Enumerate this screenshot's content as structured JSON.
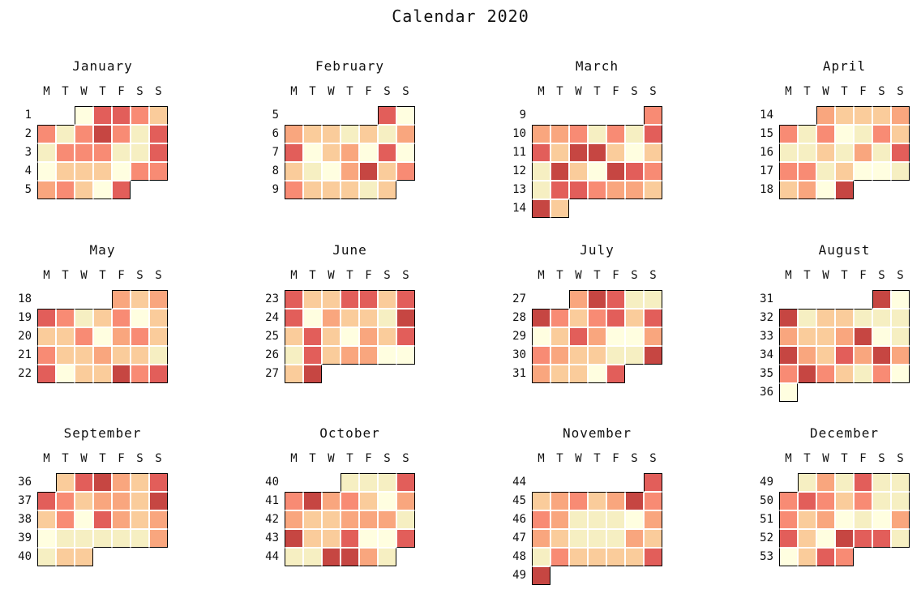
{
  "page": {
    "background": "#ffffff",
    "text_color": "#111111"
  },
  "chart_data": {
    "type": "heatmap",
    "title": "Calendar 2020",
    "year": 2020,
    "layout": {
      "months_per_row": 4,
      "week_numbers_side": "left",
      "legend": "none",
      "colormap_style": "yellow-cream to dark red (YlOrRd-like)"
    },
    "day_headers": [
      "M",
      "T",
      "W",
      "T",
      "F",
      "S",
      "S"
    ],
    "palette": {
      "0": "#FFFEE0",
      "1": "#F6EFC2",
      "2": "#FACC9B",
      "3": "#F9A67E",
      "4": "#F88B74",
      "5": "#E25E5A",
      "6": "#C64642"
    },
    "months": [
      {
        "name": "January",
        "weeks": [
          {
            "week": "1",
            "cells": [
              null,
              null,
              0,
              5,
              5,
              4,
              2
            ]
          },
          {
            "week": "2",
            "cells": [
              4,
              1,
              4,
              6,
              4,
              1,
              5
            ]
          },
          {
            "week": "3",
            "cells": [
              1,
              4,
              4,
              4,
              1,
              1,
              5
            ]
          },
          {
            "week": "4",
            "cells": [
              0,
              2,
              2,
              2,
              0,
              4,
              4
            ]
          },
          {
            "week": "5",
            "cells": [
              3,
              4,
              2,
              0,
              5,
              null,
              null
            ]
          }
        ]
      },
      {
        "name": "February",
        "weeks": [
          {
            "week": "5",
            "cells": [
              null,
              null,
              null,
              null,
              null,
              5,
              0
            ]
          },
          {
            "week": "6",
            "cells": [
              3,
              2,
              2,
              1,
              2,
              1,
              3
            ]
          },
          {
            "week": "7",
            "cells": [
              5,
              0,
              2,
              3,
              0,
              5,
              0
            ]
          },
          {
            "week": "8",
            "cells": [
              2,
              1,
              0,
              3,
              6,
              2,
              4
            ]
          },
          {
            "week": "9",
            "cells": [
              4,
              2,
              2,
              2,
              1,
              2,
              null
            ]
          }
        ]
      },
      {
        "name": "March",
        "weeks": [
          {
            "week": "9",
            "cells": [
              null,
              null,
              null,
              null,
              null,
              null,
              4
            ]
          },
          {
            "week": "10",
            "cells": [
              3,
              3,
              4,
              1,
              4,
              1,
              5
            ]
          },
          {
            "week": "11",
            "cells": [
              5,
              2,
              6,
              6,
              2,
              0,
              2
            ]
          },
          {
            "week": "12",
            "cells": [
              1,
              6,
              2,
              0,
              6,
              5,
              4
            ]
          },
          {
            "week": "13",
            "cells": [
              1,
              5,
              5,
              4,
              3,
              3,
              2
            ]
          },
          {
            "week": "14",
            "cells": [
              6,
              2,
              null,
              null,
              null,
              null,
              null
            ]
          }
        ]
      },
      {
        "name": "April",
        "weeks": [
          {
            "week": "14",
            "cells": [
              null,
              null,
              3,
              2,
              2,
              2,
              3
            ]
          },
          {
            "week": "15",
            "cells": [
              4,
              1,
              4,
              0,
              1,
              4,
              2
            ]
          },
          {
            "week": "16",
            "cells": [
              1,
              1,
              2,
              1,
              3,
              1,
              5
            ]
          },
          {
            "week": "17",
            "cells": [
              4,
              4,
              1,
              2,
              0,
              0,
              1
            ]
          },
          {
            "week": "18",
            "cells": [
              2,
              3,
              0,
              6,
              null,
              null,
              null
            ]
          }
        ]
      },
      {
        "name": "May",
        "weeks": [
          {
            "week": "18",
            "cells": [
              null,
              null,
              null,
              null,
              3,
              2,
              3
            ]
          },
          {
            "week": "19",
            "cells": [
              5,
              4,
              1,
              2,
              4,
              0,
              2
            ]
          },
          {
            "week": "20",
            "cells": [
              2,
              2,
              4,
              0,
              3,
              4,
              2
            ]
          },
          {
            "week": "21",
            "cells": [
              4,
              2,
              2,
              3,
              2,
              2,
              1
            ]
          },
          {
            "week": "22",
            "cells": [
              5,
              0,
              2,
              2,
              6,
              4,
              5
            ]
          }
        ]
      },
      {
        "name": "June",
        "weeks": [
          {
            "week": "23",
            "cells": [
              5,
              2,
              2,
              5,
              5,
              2,
              5
            ]
          },
          {
            "week": "24",
            "cells": [
              5,
              0,
              3,
              2,
              2,
              1,
              6
            ]
          },
          {
            "week": "25",
            "cells": [
              2,
              5,
              2,
              0,
              3,
              2,
              5
            ]
          },
          {
            "week": "26",
            "cells": [
              1,
              5,
              2,
              3,
              3,
              0,
              0
            ]
          },
          {
            "week": "27",
            "cells": [
              2,
              6,
              null,
              null,
              null,
              null,
              null
            ]
          }
        ]
      },
      {
        "name": "July",
        "weeks": [
          {
            "week": "27",
            "cells": [
              null,
              null,
              3,
              6,
              5,
              1,
              1
            ]
          },
          {
            "week": "28",
            "cells": [
              6,
              4,
              2,
              4,
              5,
              2,
              5
            ]
          },
          {
            "week": "29",
            "cells": [
              0,
              2,
              5,
              3,
              0,
              0,
              3
            ]
          },
          {
            "week": "30",
            "cells": [
              4,
              3,
              2,
              2,
              1,
              1,
              6
            ]
          },
          {
            "week": "31",
            "cells": [
              3,
              2,
              2,
              0,
              5,
              null,
              null
            ]
          }
        ]
      },
      {
        "name": "August",
        "weeks": [
          {
            "week": "31",
            "cells": [
              null,
              null,
              null,
              null,
              null,
              6,
              0
            ]
          },
          {
            "week": "32",
            "cells": [
              6,
              1,
              2,
              2,
              1,
              1,
              1
            ]
          },
          {
            "week": "33",
            "cells": [
              3,
              2,
              2,
              3,
              6,
              0,
              1
            ]
          },
          {
            "week": "34",
            "cells": [
              6,
              3,
              2,
              5,
              3,
              6,
              3
            ]
          },
          {
            "week": "35",
            "cells": [
              4,
              6,
              4,
              2,
              1,
              4,
              0
            ]
          },
          {
            "week": "36",
            "cells": [
              0,
              null,
              null,
              null,
              null,
              null,
              null
            ]
          }
        ]
      },
      {
        "name": "September",
        "weeks": [
          {
            "week": "36",
            "cells": [
              null,
              2,
              5,
              6,
              3,
              2,
              5
            ]
          },
          {
            "week": "37",
            "cells": [
              5,
              4,
              2,
              3,
              3,
              2,
              6
            ]
          },
          {
            "week": "38",
            "cells": [
              2,
              4,
              0,
              5,
              3,
              2,
              3
            ]
          },
          {
            "week": "39",
            "cells": [
              0,
              1,
              1,
              1,
              1,
              1,
              3
            ]
          },
          {
            "week": "40",
            "cells": [
              1,
              2,
              2,
              null,
              null,
              null,
              null
            ]
          }
        ]
      },
      {
        "name": "October",
        "weeks": [
          {
            "week": "40",
            "cells": [
              null,
              null,
              null,
              1,
              1,
              1,
              5
            ]
          },
          {
            "week": "41",
            "cells": [
              4,
              6,
              3,
              4,
              2,
              0,
              3
            ]
          },
          {
            "week": "42",
            "cells": [
              3,
              2,
              2,
              3,
              3,
              3,
              1
            ]
          },
          {
            "week": "43",
            "cells": [
              6,
              2,
              2,
              5,
              0,
              0,
              5
            ]
          },
          {
            "week": "44",
            "cells": [
              1,
              1,
              6,
              6,
              3,
              1,
              null
            ]
          }
        ]
      },
      {
        "name": "November",
        "weeks": [
          {
            "week": "44",
            "cells": [
              null,
              null,
              null,
              null,
              null,
              null,
              5
            ]
          },
          {
            "week": "45",
            "cells": [
              2,
              3,
              4,
              2,
              3,
              6,
              4
            ]
          },
          {
            "week": "46",
            "cells": [
              4,
              3,
              1,
              1,
              1,
              0,
              3
            ]
          },
          {
            "week": "47",
            "cells": [
              3,
              2,
              1,
              1,
              1,
              3,
              2
            ]
          },
          {
            "week": "48",
            "cells": [
              1,
              4,
              2,
              2,
              2,
              2,
              5
            ]
          },
          {
            "week": "49",
            "cells": [
              6,
              null,
              null,
              null,
              null,
              null,
              null
            ]
          }
        ]
      },
      {
        "name": "December",
        "weeks": [
          {
            "week": "49",
            "cells": [
              null,
              1,
              3,
              1,
              5,
              1,
              1
            ]
          },
          {
            "week": "50",
            "cells": [
              4,
              5,
              4,
              2,
              4,
              1,
              1
            ]
          },
          {
            "week": "51",
            "cells": [
              4,
              2,
              3,
              0,
              1,
              0,
              3
            ]
          },
          {
            "week": "52",
            "cells": [
              5,
              2,
              0,
              6,
              5,
              5,
              1
            ]
          },
          {
            "week": "53",
            "cells": [
              0,
              2,
              5,
              4,
              null,
              null,
              null
            ]
          }
        ]
      }
    ]
  }
}
